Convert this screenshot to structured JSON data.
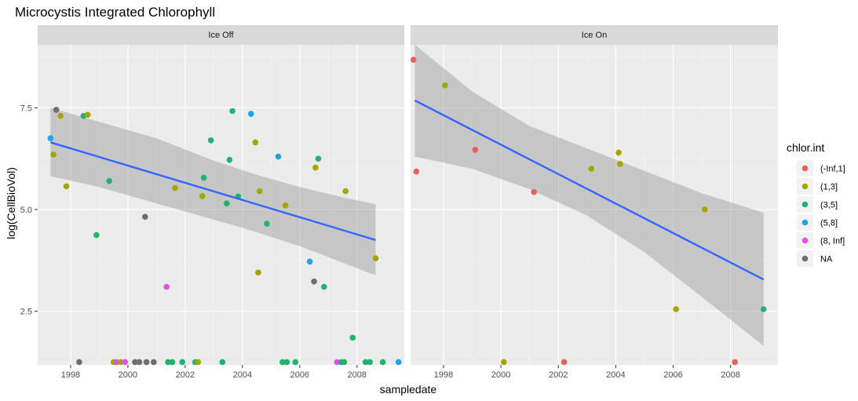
{
  "chart_data": {
    "type": "scatter",
    "title": "Microcystis Integrated Chlorophyll",
    "xlabel": "sampledate",
    "ylabel": "log(CellBioVol)",
    "xlim": [
      1996.85,
      2009.65
    ],
    "ylim": [
      1.18,
      9.05
    ],
    "x_ticks": [
      1998,
      2000,
      2002,
      2004,
      2006,
      2008
    ],
    "x_tick_labels": [
      "1998",
      "2000",
      "2002",
      "2004",
      "2006",
      "2008"
    ],
    "y_ticks": [
      2.5,
      5.0,
      7.5
    ],
    "y_tick_labels": [
      "2.5",
      "5.0",
      "7.5"
    ],
    "legend": {
      "title": "chlor.int",
      "placement": "right",
      "entries": [
        {
          "label": "(-Inf,1]",
          "color": "#F8766D"
        },
        {
          "label": "(1,3]",
          "color": "#B79F00"
        },
        {
          "label": "(3,5]",
          "color": "#00BA38"
        },
        {
          "label": "(5,8]",
          "color": "#00BFC4"
        },
        {
          "label": "(8, Inf]",
          "color": "#F564E3"
        },
        {
          "label": "NA",
          "color": "#7F7F7F"
        }
      ]
    },
    "colors": {
      "(-Inf,1]": "#E8605C",
      "(1,3]": "#A3A500",
      "(3,5]": "#21B36E",
      "(5,8]": "#1BA3EC",
      "(8, Inf]": "#E14EE8",
      "NA": "#6E6E6E"
    },
    "panels": [
      {
        "strip": "Ice Off",
        "points": [
          {
            "x": 1997.3,
            "y": 6.75,
            "group": "(5,8]"
          },
          {
            "x": 1997.4,
            "y": 6.35,
            "group": "(1,3]"
          },
          {
            "x": 1997.5,
            "y": 7.45,
            "group": "NA"
          },
          {
            "x": 1997.65,
            "y": 7.3,
            "group": "(1,3]"
          },
          {
            "x": 1997.85,
            "y": 5.57,
            "group": "(1,3]"
          },
          {
            "x": 1998.3,
            "y": 1.25,
            "group": "NA"
          },
          {
            "x": 1998.45,
            "y": 7.3,
            "group": "(3,5]"
          },
          {
            "x": 1998.6,
            "y": 7.33,
            "group": "(1,3]"
          },
          {
            "x": 1998.9,
            "y": 4.37,
            "group": "(3,5]"
          },
          {
            "x": 1999.35,
            "y": 5.7,
            "group": "(3,5]"
          },
          {
            "x": 1999.5,
            "y": 1.25,
            "group": "(1,3]"
          },
          {
            "x": 1999.6,
            "y": 1.25,
            "group": "(8, Inf]"
          },
          {
            "x": 1999.75,
            "y": 1.25,
            "group": "(1,3]"
          },
          {
            "x": 1999.9,
            "y": 1.25,
            "group": "(8, Inf]"
          },
          {
            "x": 2000.25,
            "y": 1.25,
            "group": "NA"
          },
          {
            "x": 2000.4,
            "y": 1.25,
            "group": "NA"
          },
          {
            "x": 2000.6,
            "y": 4.82,
            "group": "NA"
          },
          {
            "x": 2000.65,
            "y": 1.25,
            "group": "NA"
          },
          {
            "x": 2000.9,
            "y": 1.25,
            "group": "NA"
          },
          {
            "x": 2001.35,
            "y": 3.1,
            "group": "(8, Inf]"
          },
          {
            "x": 2001.4,
            "y": 1.25,
            "group": "(3,5]"
          },
          {
            "x": 2001.55,
            "y": 1.25,
            "group": "(3,5]"
          },
          {
            "x": 2001.65,
            "y": 5.53,
            "group": "(1,3]"
          },
          {
            "x": 2001.9,
            "y": 1.25,
            "group": "(3,5]"
          },
          {
            "x": 2002.35,
            "y": 1.25,
            "group": "(3,5]"
          },
          {
            "x": 2002.45,
            "y": 1.25,
            "group": "(1,3]"
          },
          {
            "x": 2002.6,
            "y": 5.33,
            "group": "(1,3]"
          },
          {
            "x": 2002.65,
            "y": 5.78,
            "group": "(3,5]"
          },
          {
            "x": 2002.9,
            "y": 6.7,
            "group": "(3,5]"
          },
          {
            "x": 2003.3,
            "y": 1.25,
            "group": "(3,5]"
          },
          {
            "x": 2003.45,
            "y": 5.15,
            "group": "(3,5]"
          },
          {
            "x": 2003.55,
            "y": 6.22,
            "group": "(3,5]"
          },
          {
            "x": 2003.65,
            "y": 7.42,
            "group": "(3,5]"
          },
          {
            "x": 2003.85,
            "y": 5.32,
            "group": "(3,5]"
          },
          {
            "x": 2004.3,
            "y": 7.35,
            "group": "(5,8]"
          },
          {
            "x": 2004.45,
            "y": 6.65,
            "group": "(1,3]"
          },
          {
            "x": 2004.55,
            "y": 3.45,
            "group": "(1,3]"
          },
          {
            "x": 2004.6,
            "y": 5.45,
            "group": "(1,3]"
          },
          {
            "x": 2004.85,
            "y": 4.65,
            "group": "(3,5]"
          },
          {
            "x": 2005.25,
            "y": 6.3,
            "group": "(5,8]"
          },
          {
            "x": 2005.4,
            "y": 1.25,
            "group": "(3,5]"
          },
          {
            "x": 2005.5,
            "y": 5.1,
            "group": "(1,3]"
          },
          {
            "x": 2005.55,
            "y": 1.25,
            "group": "(3,5]"
          },
          {
            "x": 2005.85,
            "y": 1.25,
            "group": "(3,5]"
          },
          {
            "x": 2006.35,
            "y": 3.72,
            "group": "(5,8]"
          },
          {
            "x": 2006.5,
            "y": 3.23,
            "group": "NA"
          },
          {
            "x": 2006.55,
            "y": 6.03,
            "group": "(1,3]"
          },
          {
            "x": 2006.65,
            "y": 6.25,
            "group": "(3,5]"
          },
          {
            "x": 2006.85,
            "y": 3.1,
            "group": "(3,5]"
          },
          {
            "x": 2007.3,
            "y": 1.25,
            "group": "(8, Inf]"
          },
          {
            "x": 2007.45,
            "y": 1.25,
            "group": "(3,5]"
          },
          {
            "x": 2007.55,
            "y": 1.25,
            "group": "(3,5]"
          },
          {
            "x": 2007.6,
            "y": 5.45,
            "group": "(1,3]"
          },
          {
            "x": 2007.85,
            "y": 1.85,
            "group": "(3,5]"
          },
          {
            "x": 2008.3,
            "y": 1.25,
            "group": "(3,5]"
          },
          {
            "x": 2008.45,
            "y": 1.25,
            "group": "(3,5]"
          },
          {
            "x": 2008.65,
            "y": 3.8,
            "group": "(1,3]"
          },
          {
            "x": 2008.9,
            "y": 1.25,
            "group": "(3,5]"
          },
          {
            "x": 2009.45,
            "y": 1.25,
            "group": "(5,8]"
          }
        ],
        "trend": [
          {
            "x": 1997.3,
            "y": 6.65
          },
          {
            "x": 2008.65,
            "y": 4.25
          }
        ],
        "band_upper": [
          {
            "x": 1997.3,
            "y": 7.5
          },
          {
            "x": 2001.0,
            "y": 6.75
          },
          {
            "x": 2003.0,
            "y": 6.2
          },
          {
            "x": 2004.5,
            "y": 5.85
          },
          {
            "x": 2006.0,
            "y": 5.55
          },
          {
            "x": 2007.5,
            "y": 5.3
          },
          {
            "x": 2008.65,
            "y": 5.13
          }
        ],
        "band_lower": [
          {
            "x": 1997.3,
            "y": 5.82
          },
          {
            "x": 1999.0,
            "y": 5.55
          },
          {
            "x": 2000.5,
            "y": 5.25
          },
          {
            "x": 2002.0,
            "y": 4.95
          },
          {
            "x": 2004.0,
            "y": 4.55
          },
          {
            "x": 2006.0,
            "y": 4.1
          },
          {
            "x": 2008.65,
            "y": 3.38
          }
        ]
      },
      {
        "strip": "Ice On",
        "points": [
          {
            "x": 1996.95,
            "y": 8.68,
            "group": "(-Inf,1]"
          },
          {
            "x": 1997.05,
            "y": 5.93,
            "group": "(-Inf,1]"
          },
          {
            "x": 1998.05,
            "y": 8.05,
            "group": "(1,3]"
          },
          {
            "x": 1999.1,
            "y": 6.47,
            "group": "(-Inf,1]"
          },
          {
            "x": 2000.1,
            "y": 1.25,
            "group": "(1,3]"
          },
          {
            "x": 2001.15,
            "y": 5.43,
            "group": "(-Inf,1]"
          },
          {
            "x": 2002.2,
            "y": 1.25,
            "group": "(-Inf,1]"
          },
          {
            "x": 2003.15,
            "y": 6.0,
            "group": "(1,3]"
          },
          {
            "x": 2004.1,
            "y": 6.4,
            "group": "(1,3]"
          },
          {
            "x": 2004.15,
            "y": 6.12,
            "group": "(1,3]"
          },
          {
            "x": 2006.1,
            "y": 2.55,
            "group": "(1,3]"
          },
          {
            "x": 2007.1,
            "y": 5.0,
            "group": "(1,3]"
          },
          {
            "x": 2008.15,
            "y": 1.25,
            "group": "(-Inf,1]"
          },
          {
            "x": 2009.15,
            "y": 2.55,
            "group": "(3,5]"
          }
        ],
        "trend": [
          {
            "x": 1997.0,
            "y": 7.68
          },
          {
            "x": 2009.15,
            "y": 3.28
          }
        ],
        "band_upper": [
          {
            "x": 1997.0,
            "y": 9.05
          },
          {
            "x": 1999.0,
            "y": 7.9
          },
          {
            "x": 2001.0,
            "y": 7.05
          },
          {
            "x": 2003.0,
            "y": 6.5
          },
          {
            "x": 2005.0,
            "y": 5.95
          },
          {
            "x": 2007.0,
            "y": 5.4
          },
          {
            "x": 2009.15,
            "y": 4.92
          }
        ],
        "band_lower": [
          {
            "x": 1997.0,
            "y": 6.3
          },
          {
            "x": 1999.0,
            "y": 6.0
          },
          {
            "x": 2001.0,
            "y": 5.5
          },
          {
            "x": 2003.0,
            "y": 4.85
          },
          {
            "x": 2005.0,
            "y": 3.95
          },
          {
            "x": 2007.0,
            "y": 2.85
          },
          {
            "x": 2009.15,
            "y": 1.65
          }
        ]
      }
    ]
  }
}
